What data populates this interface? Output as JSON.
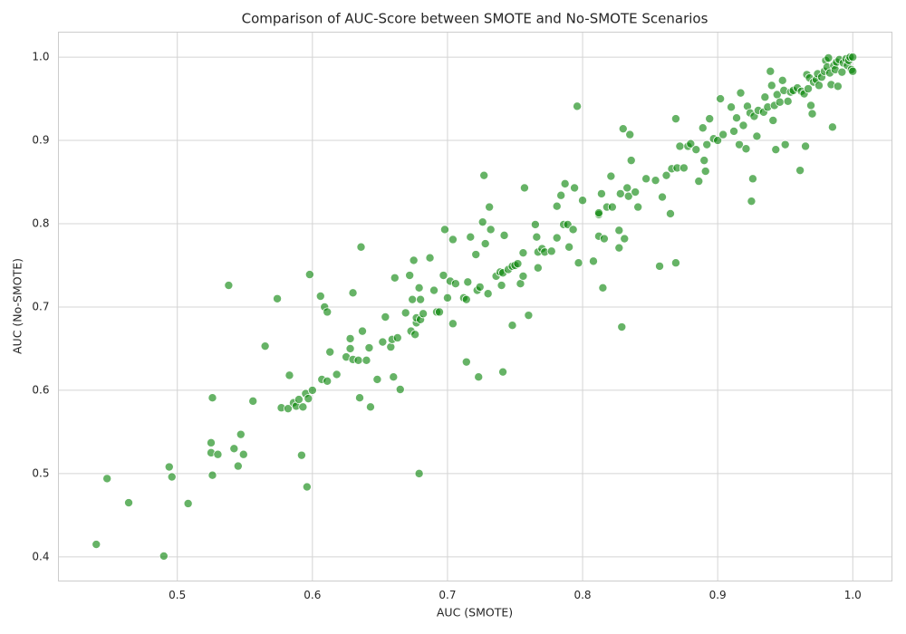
{
  "chart_data": {
    "type": "scatter",
    "title": "Comparison of AUC-Score between SMOTE and No-SMOTE Scenarios",
    "xlabel": "AUC (SMOTE)",
    "ylabel": "AUC (No-SMOTE)",
    "color": "#008000",
    "grid": true,
    "xlim": [
      0.412,
      1.029
    ],
    "ylim": [
      0.371,
      1.03
    ],
    "xticks": [
      0.5,
      0.6,
      0.7,
      0.8,
      0.9,
      {
        "value": 1,
        "label": "1.0"
      }
    ],
    "yticks": [
      0.4,
      0.5,
      0.6,
      0.7,
      0.8,
      0.9,
      {
        "value": 1,
        "label": "1.0"
      }
    ],
    "x": [
      0.44,
      0.448,
      0.464,
      0.49,
      0.494,
      0.496,
      0.508,
      0.526,
      0.525,
      0.525,
      0.526,
      0.53,
      0.538,
      0.542,
      0.545,
      0.547,
      0.549,
      0.556,
      0.565,
      0.574,
      0.577,
      0.582,
      0.583,
      0.586,
      0.588,
      0.59,
      0.592,
      0.593,
      0.595,
      0.596,
      0.597,
      0.598,
      0.6,
      0.606,
      0.607,
      0.609,
      0.611,
      0.611,
      0.613,
      0.618,
      0.625,
      0.628,
      0.628,
      0.63,
      0.63,
      0.634,
      0.635,
      0.636,
      0.637,
      0.64,
      0.642,
      0.643,
      0.648,
      0.652,
      0.654,
      0.658,
      0.659,
      0.66,
      0.661,
      0.663,
      0.665,
      0.669,
      0.672,
      0.673,
      0.674,
      0.675,
      0.676,
      0.677,
      0.677,
      0.679,
      0.679,
      0.68,
      0.68,
      0.682,
      0.687,
      0.69,
      0.692,
      0.694,
      0.697,
      0.698,
      0.7,
      0.702,
      0.704,
      0.704,
      0.706,
      0.712,
      0.714,
      0.714,
      0.715,
      0.717,
      0.721,
      0.722,
      0.723,
      0.724,
      0.726,
      0.727,
      0.728,
      0.73,
      0.731,
      0.732,
      0.736,
      0.739,
      0.74,
      0.741,
      0.741,
      0.742,
      0.745,
      0.748,
      0.748,
      0.75,
      0.752,
      0.754,
      0.756,
      0.756,
      0.757,
      0.76,
      0.765,
      0.766,
      0.767,
      0.767,
      0.77,
      0.772,
      0.777,
      0.781,
      0.781,
      0.784,
      0.786,
      0.787,
      0.789,
      0.79,
      0.793,
      0.794,
      0.796,
      0.797,
      0.8,
      0.808,
      0.812,
      0.812,
      0.812,
      0.814,
      0.815,
      0.816,
      0.818,
      0.821,
      0.822,
      0.827,
      0.827,
      0.828,
      0.829,
      0.83,
      0.831,
      0.833,
      0.834,
      0.835,
      0.836,
      0.839,
      0.841,
      0.847,
      0.854,
      0.857,
      0.859,
      0.862,
      0.865,
      0.866,
      0.869,
      0.869,
      0.87,
      0.872,
      0.875,
      0.878,
      0.88,
      0.884,
      0.886,
      0.889,
      0.89,
      0.891,
      0.892,
      0.894,
      0.897,
      0.9,
      0.902,
      0.904,
      0.91,
      0.912,
      0.914,
      0.916,
      0.917,
      0.919,
      0.921,
      0.922,
      0.924,
      0.925,
      0.926,
      0.927,
      0.929,
      0.93,
      0.934,
      0.935,
      0.937,
      0.939,
      0.94,
      0.941,
      0.942,
      0.943,
      0.944,
      0.946,
      0.948,
      0.949,
      0.95,
      0.952,
      0.954,
      0.956,
      0.959,
      0.961,
      0.962,
      0.964,
      0.965,
      0.966,
      0.967,
      0.968,
      0.969,
      0.97,
      0.971,
      0.973,
      0.974,
      0.975,
      0.977,
      0.979,
      0.98,
      0.981,
      0.982,
      0.983,
      0.984,
      0.985,
      0.986,
      0.987,
      0.988,
      0.989,
      0.99,
      0.992,
      0.993,
      0.995,
      0.996,
      0.997,
      0.998,
      0.999,
      1.0,
      1.0
    ],
    "values": [
      0.415,
      0.494,
      0.465,
      0.401,
      0.508,
      0.496,
      0.464,
      0.591,
      0.537,
      0.525,
      0.498,
      0.523,
      0.726,
      0.53,
      0.509,
      0.547,
      0.523,
      0.587,
      0.653,
      0.71,
      0.579,
      0.578,
      0.618,
      0.585,
      0.581,
      0.589,
      0.522,
      0.58,
      0.596,
      0.484,
      0.59,
      0.739,
      0.6,
      0.713,
      0.613,
      0.7,
      0.611,
      0.694,
      0.646,
      0.619,
      0.64,
      0.662,
      0.65,
      0.637,
      0.717,
      0.636,
      0.591,
      0.772,
      0.671,
      0.636,
      0.651,
      0.58,
      0.613,
      0.658,
      0.688,
      0.652,
      0.661,
      0.616,
      0.735,
      0.663,
      0.601,
      0.693,
      0.738,
      0.671,
      0.709,
      0.756,
      0.667,
      0.681,
      0.687,
      0.5,
      0.723,
      0.709,
      0.685,
      0.692,
      0.759,
      0.72,
      0.694,
      0.694,
      0.738,
      0.793,
      0.711,
      0.731,
      0.68,
      0.781,
      0.728,
      0.711,
      0.634,
      0.709,
      0.73,
      0.784,
      0.763,
      0.72,
      0.616,
      0.724,
      0.802,
      0.858,
      0.776,
      0.716,
      0.82,
      0.793,
      0.737,
      0.742,
      0.726,
      0.622,
      0.741,
      0.786,
      0.745,
      0.678,
      0.749,
      0.75,
      0.752,
      0.728,
      0.737,
      0.765,
      0.843,
      0.69,
      0.799,
      0.784,
      0.766,
      0.747,
      0.77,
      0.766,
      0.767,
      0.783,
      0.821,
      0.834,
      0.799,
      0.848,
      0.799,
      0.772,
      0.793,
      0.843,
      0.941,
      0.753,
      0.828,
      0.755,
      0.811,
      0.813,
      0.785,
      0.836,
      0.723,
      0.782,
      0.82,
      0.857,
      0.82,
      0.771,
      0.792,
      0.836,
      0.676,
      0.914,
      0.782,
      0.843,
      0.833,
      0.907,
      0.876,
      0.838,
      0.82,
      0.854,
      0.852,
      0.749,
      0.832,
      0.858,
      0.812,
      0.866,
      0.753,
      0.926,
      0.867,
      0.893,
      0.867,
      0.893,
      0.896,
      0.889,
      0.851,
      0.915,
      0.876,
      0.863,
      0.895,
      0.926,
      0.902,
      0.9,
      0.95,
      0.907,
      0.94,
      0.911,
      0.927,
      0.895,
      0.957,
      0.918,
      0.89,
      0.941,
      0.933,
      0.827,
      0.854,
      0.929,
      0.905,
      0.936,
      0.934,
      0.952,
      0.94,
      0.983,
      0.966,
      0.924,
      0.942,
      0.889,
      0.955,
      0.946,
      0.972,
      0.96,
      0.895,
      0.947,
      0.958,
      0.96,
      0.963,
      0.864,
      0.959,
      0.956,
      0.893,
      0.979,
      0.962,
      0.975,
      0.942,
      0.932,
      0.97,
      0.973,
      0.98,
      0.966,
      0.976,
      0.983,
      0.996,
      0.988,
      0.999,
      0.981,
      0.967,
      0.916,
      0.99,
      0.985,
      0.994,
      0.965,
      0.997,
      0.982,
      0.993,
      0.998,
      0.99,
      0.996,
      1.0,
      0.985,
      0.983,
      1.0
    ]
  }
}
